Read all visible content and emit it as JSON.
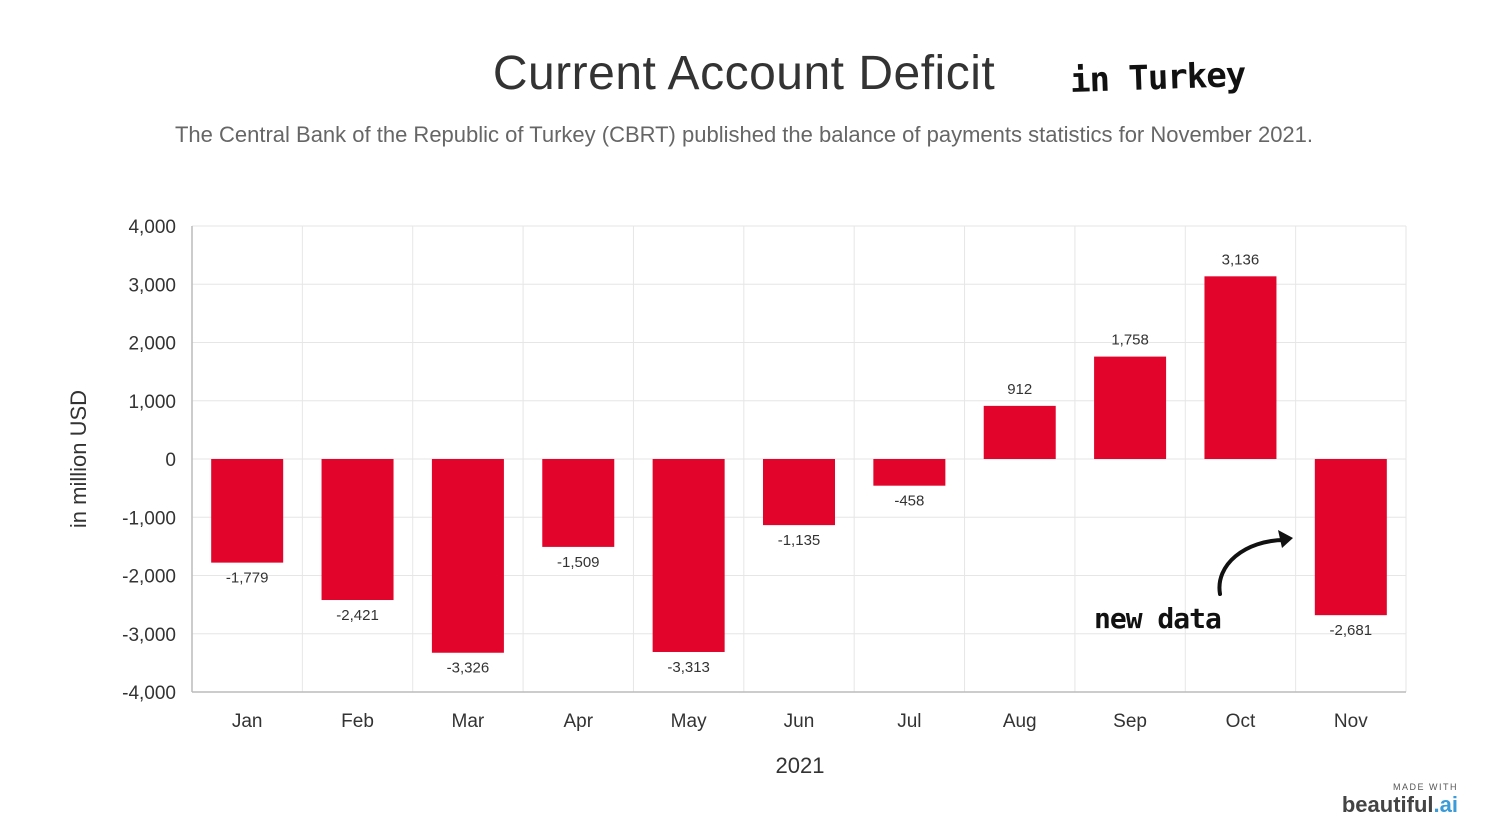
{
  "title": "Current Account Deficit",
  "handwritten_title_note": "in Turkey",
  "subtitle": "The Central Bank of the Republic of Turkey (CBRT) published the balance of payments statistics for November 2021.",
  "annotation": {
    "text": "new data"
  },
  "branding": {
    "made_with": "MADE WITH",
    "name_main": "beautiful",
    "name_suffix": ".ai"
  },
  "colors": {
    "bar": "#e2042a",
    "grid": "#e6e6e6",
    "axis": "#bbbbbb"
  },
  "chart_data": {
    "type": "bar",
    "categories": [
      "Jan",
      "Feb",
      "Mar",
      "Apr",
      "May",
      "Jun",
      "Jul",
      "Aug",
      "Sep",
      "Oct",
      "Nov"
    ],
    "values": [
      -1779,
      -2421,
      -3326,
      -1509,
      -3313,
      -1135,
      -458,
      912,
      1758,
      3136,
      -2681
    ],
    "value_labels": [
      "-1,779",
      "-2,421",
      "-3,326",
      "-1,509",
      "-3,313",
      "-1,135",
      "-458",
      "912",
      "1,758",
      "3,136",
      "-2,681"
    ],
    "xlabel": "2021",
    "ylabel": "in million USD",
    "ylim": [
      -4000,
      4000
    ],
    "yticks": [
      4000,
      3000,
      2000,
      1000,
      0,
      -1000,
      -2000,
      -3000,
      -4000
    ],
    "ytick_labels": [
      "4,000",
      "3,000",
      "2,000",
      "1,000",
      "0",
      "-1,000",
      "-2,000",
      "-3,000",
      "-4,000"
    ],
    "grid": true,
    "legend": "none"
  }
}
